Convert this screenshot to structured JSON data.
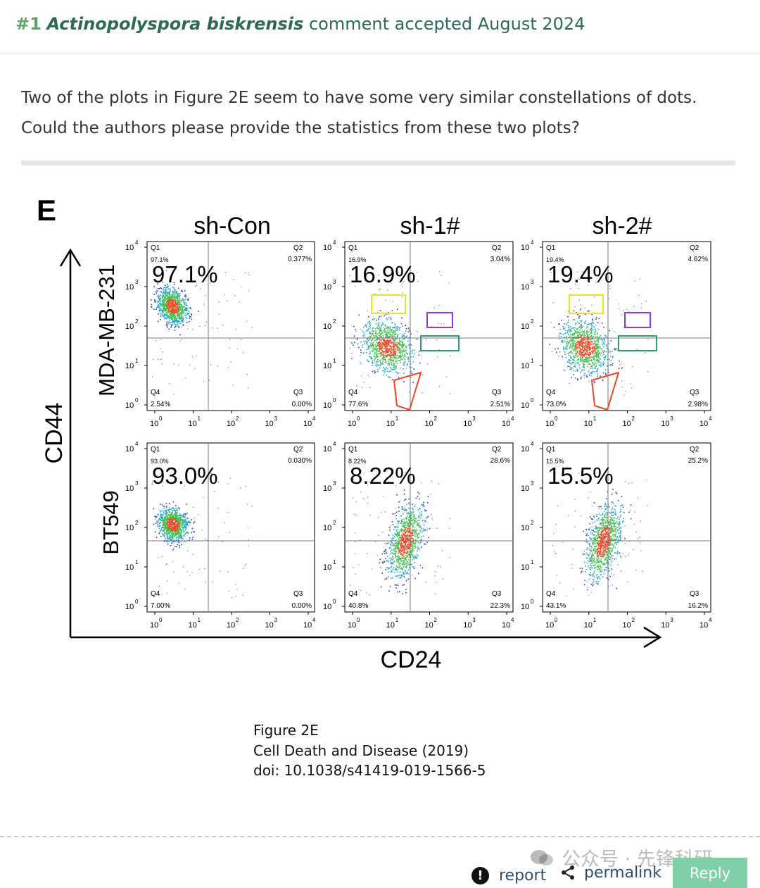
{
  "header": {
    "number": "#1",
    "species": "Actinopolyspora biskrensis",
    "status": "comment accepted August 2024"
  },
  "comment": {
    "text": "Two of the plots in Figure 2E seem to have some very similar constellations of dots. Could the authors please provide the statistics from these two plots?"
  },
  "figure": {
    "panel_letter": "E",
    "columns": [
      "sh-Con",
      "sh-1#",
      "sh-2#"
    ],
    "rows": [
      "MDA-MB-231",
      "BT549"
    ],
    "y_axis_label": "CD44",
    "x_axis_label": "CD24",
    "tick_labels": [
      "10",
      "10",
      "10",
      "10",
      "10"
    ],
    "tick_exponents": [
      "0",
      "1",
      "2",
      "3",
      "4"
    ],
    "plots": [
      {
        "q1_label": "Q1",
        "q1_small": "97.1%",
        "big": "97.1%",
        "q2_label": "Q2",
        "q2": "0.377%",
        "q3_label": "Q3",
        "q3": "0.00%",
        "q4_label": "Q4",
        "q4": "2.54%"
      },
      {
        "q1_label": "Q1",
        "q1_small": "16.9%",
        "big": "16.9%",
        "q2_label": "Q2",
        "q2": "3.04%",
        "q3_label": "Q3",
        "q3": "2.51%",
        "q4_label": "Q4",
        "q4": "77.6%"
      },
      {
        "q1_label": "Q1",
        "q1_small": "19.4%",
        "big": "19.4%",
        "q2_label": "Q2",
        "q2": "4.62%",
        "q3_label": "Q3",
        "q3": "2.98%",
        "q4_label": "Q4",
        "q4": "73.0%"
      },
      {
        "q1_label": "Q1",
        "q1_small": "93.0%",
        "big": "93.0%",
        "q2_label": "Q2",
        "q2": "0.030%",
        "q3_label": "Q3",
        "q3": "0.00%",
        "q4_label": "Q4",
        "q4": "7.00%"
      },
      {
        "q1_label": "Q1",
        "q1_small": "8.22%",
        "big": "8.22%",
        "q2_label": "Q2",
        "q2": "28.6%",
        "q3_label": "Q3",
        "q3": "22.3%",
        "q4_label": "Q4",
        "q4": "40.8%"
      },
      {
        "q1_label": "Q1",
        "q1_small": "15.5%",
        "big": "15.5%",
        "q2_label": "Q2",
        "q2": "25.2%",
        "q3_label": "Q3",
        "q3": "16.2%",
        "q4_label": "Q4",
        "q4": "43.1%"
      }
    ],
    "highlight_colors": {
      "yellow": "#f2e21a",
      "purple": "#9a35d6",
      "green": "#2e9a6e",
      "red": "#e8482a"
    }
  },
  "caption": {
    "line1": "Figure 2E",
    "line2": "Cell Death and Disease (2019)",
    "line3": "doi: 10.1038/s41419-019-1566-5"
  },
  "footer": {
    "report_label": "report",
    "report_icon": "exclamation-icon",
    "permalink_label": "permalink",
    "permalink_icon": "share-icon",
    "reply_label": "Reply",
    "watermark_text": "公众号 · 先锋科研"
  }
}
